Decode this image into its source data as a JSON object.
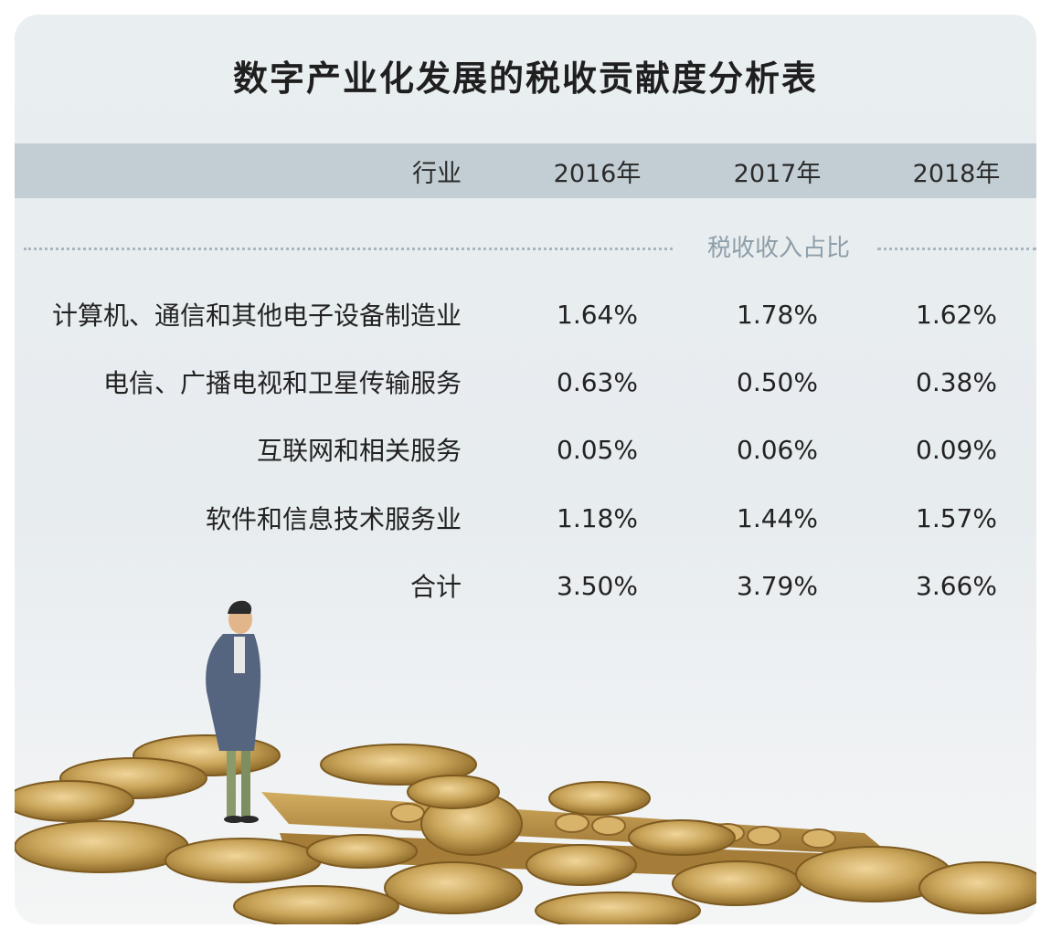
{
  "title": "数字产业化发展的税收贡献度分析表",
  "header": {
    "industry": "行业",
    "years": [
      "2016年",
      "2017年",
      "2018年"
    ]
  },
  "section_label": "税收收入占比",
  "rows": [
    {
      "name": "计算机、通信和其他电子设备制造业",
      "values": [
        "1.64%",
        "1.78%",
        "1.62%"
      ]
    },
    {
      "name": "电信、广播电视和卫星传输服务",
      "values": [
        "0.63%",
        "0.50%",
        "0.38%"
      ]
    },
    {
      "name": "互联网和相关服务",
      "values": [
        "0.05%",
        "0.06%",
        "0.09%"
      ]
    },
    {
      "name": "软件和信息技术服务业",
      "values": [
        "1.18%",
        "1.44%",
        "1.57%"
      ]
    },
    {
      "name": "合计",
      "values": [
        "3.50%",
        "3.79%",
        "3.66%"
      ]
    }
  ],
  "colors": {
    "header_bg": "#c3ced4",
    "section_label": "#8d9ea8",
    "coin": "#c9a55a"
  },
  "chart_data": {
    "type": "table",
    "title": "数字产业化发展的税收贡献度分析表",
    "columns": [
      "行业",
      "2016年",
      "2017年",
      "2018年"
    ],
    "subheader": "税收收入占比",
    "rows": [
      [
        "计算机、通信和其他电子设备制造业",
        "1.64%",
        "1.78%",
        "1.62%"
      ],
      [
        "电信、广播电视和卫星传输服务",
        "0.63%",
        "0.50%",
        "0.38%"
      ],
      [
        "互联网和相关服务",
        "0.05%",
        "0.06%",
        "0.09%"
      ],
      [
        "软件和信息技术服务业",
        "1.18%",
        "1.44%",
        "1.57%"
      ],
      [
        "合计",
        "3.50%",
        "3.79%",
        "3.66%"
      ]
    ]
  }
}
